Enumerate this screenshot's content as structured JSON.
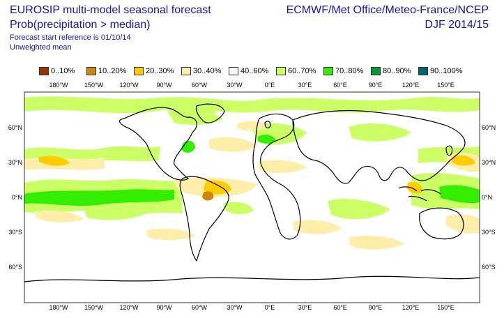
{
  "header": {
    "title_left": "EUROSIP multi-model seasonal forecast",
    "subtitle_left": "Prob(precipitation > median)",
    "note_forecast_start": "Forecast start reference is 01/10/14",
    "note_mean": "Unweighted mean",
    "title_right": "ECMWF/Met Office/Meteo-France/NCEP",
    "season": "DJF 2014/15"
  },
  "legend": [
    {
      "label": "0..10%",
      "color": "#993300"
    },
    {
      "label": "10..20%",
      "color": "#cc8800"
    },
    {
      "label": "20..30%",
      "color": "#ffcc00"
    },
    {
      "label": "30..40%",
      "color": "#ffeeaa"
    },
    {
      "label": "40..60%",
      "color": "#ffffff"
    },
    {
      "label": "60..70%",
      "color": "#ccff66"
    },
    {
      "label": "70..80%",
      "color": "#33ee00"
    },
    {
      "label": "80..90%",
      "color": "#009933"
    },
    {
      "label": "90..100%",
      "color": "#006666"
    }
  ],
  "axes": {
    "lon_ticks": [
      "180°W",
      "150°W",
      "120°W",
      "90°W",
      "60°W",
      "30°W",
      "0°E",
      "30°E",
      "60°E",
      "90°E",
      "120°E",
      "150°E"
    ],
    "lat_ticks": [
      "60°N",
      "30°N",
      "0°N",
      "30°S",
      "60°S"
    ]
  },
  "colors": {
    "title_blue": "#1414b4",
    "coastline": "#000000"
  }
}
